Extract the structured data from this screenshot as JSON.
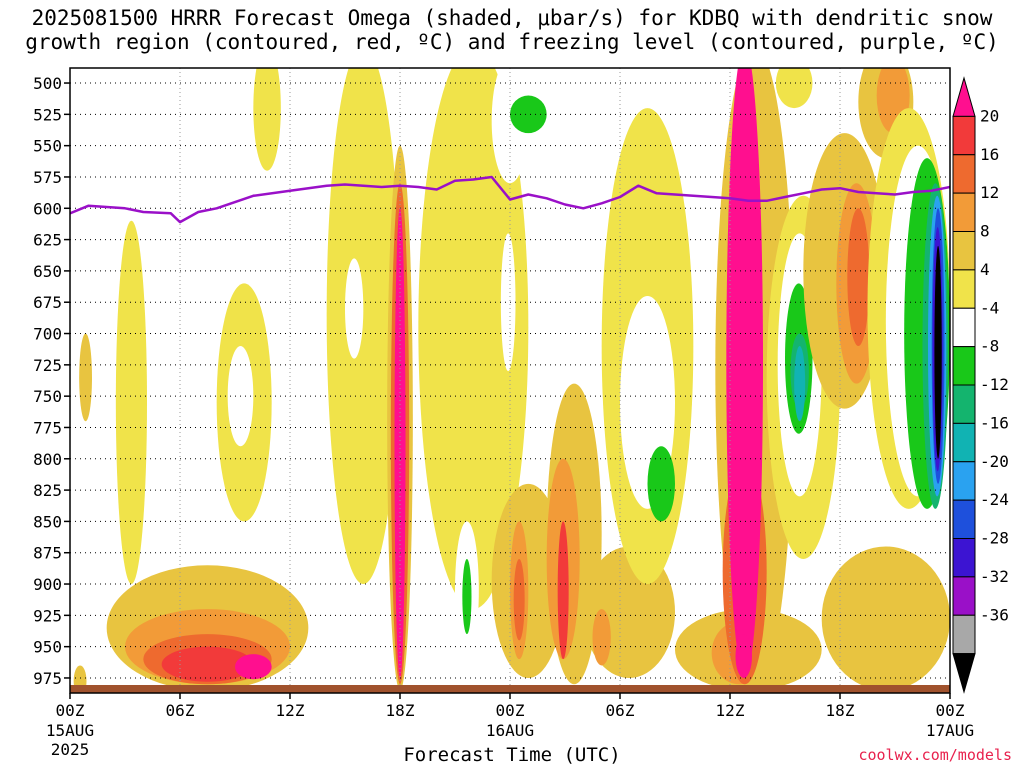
{
  "title": {
    "line1": "2025081500 HRRR Forecast Omega (shaded, μbar/s) for KDBQ with dendritic snow",
    "line2": "growth region (contoured, red, ºC) and freezing level (contoured, purple, ºC)"
  },
  "xlabel": "Forecast Time (UTC)",
  "credit": "coolwx.com/models",
  "colors": {
    "freezing_level": "#9a10c8",
    "ground": "#a0522d"
  },
  "chart_data": {
    "type": "heatmap",
    "title": "2025081500 HRRR Forecast Omega (shaded, μbar/s) for KDBQ",
    "xlabel": "Forecast Time (UTC)",
    "ylabel": "",
    "xlim": [
      0,
      48
    ],
    "ylim": [
      987,
      488
    ],
    "y_axis": "pressure (hPa), decreasing upward",
    "x_ticks": [
      {
        "h": 0,
        "label": "00Z",
        "sub": [
          "15AUG",
          "2025"
        ]
      },
      {
        "h": 6,
        "label": "06Z",
        "sub": []
      },
      {
        "h": 12,
        "label": "12Z",
        "sub": []
      },
      {
        "h": 18,
        "label": "18Z",
        "sub": []
      },
      {
        "h": 24,
        "label": "00Z",
        "sub": [
          "16AUG"
        ]
      },
      {
        "h": 30,
        "label": "06Z",
        "sub": []
      },
      {
        "h": 36,
        "label": "12Z",
        "sub": []
      },
      {
        "h": 42,
        "label": "18Z",
        "sub": []
      },
      {
        "h": 48,
        "label": "00Z",
        "sub": [
          "17AUG"
        ]
      }
    ],
    "y_ticks": [
      500,
      525,
      550,
      575,
      600,
      625,
      650,
      675,
      700,
      725,
      750,
      775,
      800,
      825,
      850,
      875,
      900,
      925,
      950,
      975
    ],
    "grid": true,
    "colorbar": {
      "labels": [
        20,
        16,
        12,
        8,
        4,
        -4,
        -8,
        -12,
        -16,
        -20,
        -24,
        -28,
        -32,
        -36
      ],
      "colors": [
        "#ff0f8f",
        "#f23a3a",
        "#ee6a2f",
        "#f29b38",
        "#e8c440",
        "#f0e34a",
        "#ffffff",
        "#19c819",
        "#14b46e",
        "#11b3b3",
        "#2aa2f0",
        "#1e50dc",
        "#3c14d2",
        "#9a10c8",
        "#a8a8a8",
        "#000000"
      ]
    },
    "freezing_level_series": {
      "x": [
        0,
        1,
        3,
        4,
        5.5,
        6,
        7,
        8,
        10,
        12,
        14,
        15,
        17,
        18,
        19,
        20,
        21,
        22,
        23,
        24,
        25,
        26,
        27,
        28,
        29,
        30,
        31,
        32,
        33,
        34,
        35,
        36,
        37,
        38,
        39,
        40,
        41,
        42,
        43,
        44,
        45,
        46,
        47,
        48
      ],
      "p": [
        604,
        598,
        600,
        603,
        604,
        611,
        603,
        600,
        590,
        586,
        582,
        581,
        583,
        582,
        583,
        585,
        578,
        577,
        575,
        593,
        589,
        592,
        597,
        600,
        596,
        591,
        582,
        588,
        589,
        590,
        591,
        592,
        594,
        594,
        591,
        588,
        585,
        584,
        587,
        588,
        589,
        587,
        586,
        583
      ]
    },
    "shaded_regions": [
      {
        "x": [
          0.2,
          0.9
        ],
        "p": [
          965,
          990
        ],
        "v": 4
      },
      {
        "x": [
          0.5,
          1.2
        ],
        "p": [
          700,
          770
        ],
        "v": 4
      },
      {
        "x": [
          2,
          13
        ],
        "p": [
          885,
          985
        ],
        "v": 4
      },
      {
        "x": [
          3,
          12
        ],
        "p": [
          920,
          980
        ],
        "v": 8
      },
      {
        "x": [
          4,
          11
        ],
        "p": [
          940,
          980
        ],
        "v": 12
      },
      {
        "x": [
          5,
          10
        ],
        "p": [
          950,
          978
        ],
        "v": 16
      },
      {
        "x": [
          9,
          11
        ],
        "p": [
          956,
          976
        ],
        "v": 20
      },
      {
        "x": [
          2.5,
          4.2
        ],
        "p": [
          610,
          900
        ],
        "v": -4
      },
      {
        "x": [
          8,
          11
        ],
        "p": [
          660,
          850
        ],
        "v": -4
      },
      {
        "x": [
          8.6,
          10
        ],
        "p": [
          710,
          790
        ],
        "v": -8
      },
      {
        "x": [
          10,
          11.5
        ],
        "p": [
          470,
          570
        ],
        "v": -4
      },
      {
        "x": [
          14,
          18
        ],
        "p": [
          470,
          900
        ],
        "v": -4
      },
      {
        "x": [
          15,
          16
        ],
        "p": [
          640,
          720
        ],
        "v": -8
      },
      {
        "x": [
          17.3,
          18.7
        ],
        "p": [
          550,
          985
        ],
        "v": 4
      },
      {
        "x": [
          17.5,
          18.5
        ],
        "p": [
          580,
          980
        ],
        "v": 12
      },
      {
        "x": [
          17.7,
          18.3
        ],
        "p": [
          600,
          975
        ],
        "v": 20
      },
      {
        "x": [
          19,
          25
        ],
        "p": [
          470,
          920
        ],
        "v": -4
      },
      {
        "x": [
          21,
          22.3
        ],
        "p": [
          850,
          960
        ],
        "v": -8
      },
      {
        "x": [
          21.4,
          21.9
        ],
        "p": [
          880,
          940
        ],
        "v": -12
      },
      {
        "x": [
          23,
          25
        ],
        "p": [
          480,
          580
        ],
        "v": -8
      },
      {
        "x": [
          23.5,
          24.3
        ],
        "p": [
          620,
          730
        ],
        "v": -8
      },
      {
        "x": [
          24,
          26
        ],
        "p": [
          510,
          540
        ],
        "v": -12
      },
      {
        "x": [
          23,
          27
        ],
        "p": [
          820,
          975
        ],
        "v": 4
      },
      {
        "x": [
          24,
          25
        ],
        "p": [
          850,
          960
        ],
        "v": 8
      },
      {
        "x": [
          24.2,
          24.8
        ],
        "p": [
          880,
          945
        ],
        "v": 12
      },
      {
        "x": [
          26,
          29
        ],
        "p": [
          740,
          980
        ],
        "v": 4
      },
      {
        "x": [
          26,
          27.8
        ],
        "p": [
          800,
          960
        ],
        "v": 8
      },
      {
        "x": [
          26.6,
          27.2
        ],
        "p": [
          850,
          960
        ],
        "v": 16
      },
      {
        "x": [
          28,
          33
        ],
        "p": [
          870,
          975
        ],
        "v": 4
      },
      {
        "x": [
          28.5,
          29.5
        ],
        "p": [
          920,
          965
        ],
        "v": 8
      },
      {
        "x": [
          29,
          34
        ],
        "p": [
          520,
          900
        ],
        "v": -4
      },
      {
        "x": [
          30,
          33
        ],
        "p": [
          670,
          840
        ],
        "v": -8
      },
      {
        "x": [
          31.5,
          33
        ],
        "p": [
          790,
          850
        ],
        "v": -12
      },
      {
        "x": [
          33,
          41
        ],
        "p": [
          920,
          985
        ],
        "v": 4
      },
      {
        "x": [
          35,
          38
        ],
        "p": [
          930,
          980
        ],
        "v": 8
      },
      {
        "x": [
          35.2,
          39.5
        ],
        "p": [
          470,
          985
        ],
        "v": 4
      },
      {
        "x": [
          35.6,
          38
        ],
        "p": [
          800,
          980
        ],
        "v": 12
      },
      {
        "x": [
          35.8,
          37.8
        ],
        "p": [
          470,
          975
        ],
        "v": 20
      },
      {
        "x": [
          36.3,
          37.2
        ],
        "p": [
          940,
          975
        ],
        "v": 20
      },
      {
        "x": [
          38,
          42
        ],
        "p": [
          590,
          880
        ],
        "v": -4
      },
      {
        "x": [
          38.6,
          41
        ],
        "p": [
          620,
          830
        ],
        "v": -8
      },
      {
        "x": [
          39,
          40.5
        ],
        "p": [
          660,
          780
        ],
        "v": -12
      },
      {
        "x": [
          39.3,
          40.3
        ],
        "p": [
          700,
          760
        ],
        "v": -16
      },
      {
        "x": [
          39.5,
          40.1
        ],
        "p": [
          710,
          770
        ],
        "v": -20
      },
      {
        "x": [
          38.5,
          40.5
        ],
        "p": [
          480,
          520
        ],
        "v": -4
      },
      {
        "x": [
          40,
          44.5
        ],
        "p": [
          540,
          760
        ],
        "v": 4
      },
      {
        "x": [
          41.8,
          44
        ],
        "p": [
          580,
          740
        ],
        "v": 8
      },
      {
        "x": [
          42.4,
          43.6
        ],
        "p": [
          600,
          710
        ],
        "v": 12
      },
      {
        "x": [
          43,
          46
        ],
        "p": [
          470,
          560
        ],
        "v": 4
      },
      {
        "x": [
          44,
          45.8
        ],
        "p": [
          480,
          540
        ],
        "v": 8
      },
      {
        "x": [
          41,
          48
        ],
        "p": [
          870,
          985
        ],
        "v": 4
      },
      {
        "x": [
          43.5,
          48
        ],
        "p": [
          520,
          840
        ],
        "v": -4
      },
      {
        "x": [
          44.5,
          48
        ],
        "p": [
          550,
          830
        ],
        "v": -8
      },
      {
        "x": [
          45.5,
          48
        ],
        "p": [
          560,
          840
        ],
        "v": -12
      },
      {
        "x": [
          46.5,
          47.9
        ],
        "p": [
          580,
          840
        ],
        "v": -16
      },
      {
        "x": [
          46.8,
          47.8
        ],
        "p": [
          590,
          830
        ],
        "v": -24
      },
      {
        "x": [
          47,
          47.7
        ],
        "p": [
          600,
          820
        ],
        "v": -28
      },
      {
        "x": [
          47.05,
          47.6
        ],
        "p": [
          615,
          810
        ],
        "v": -32
      },
      {
        "x": [
          47.15,
          47.55
        ],
        "p": [
          630,
          800
        ],
        "v": -36
      }
    ]
  }
}
